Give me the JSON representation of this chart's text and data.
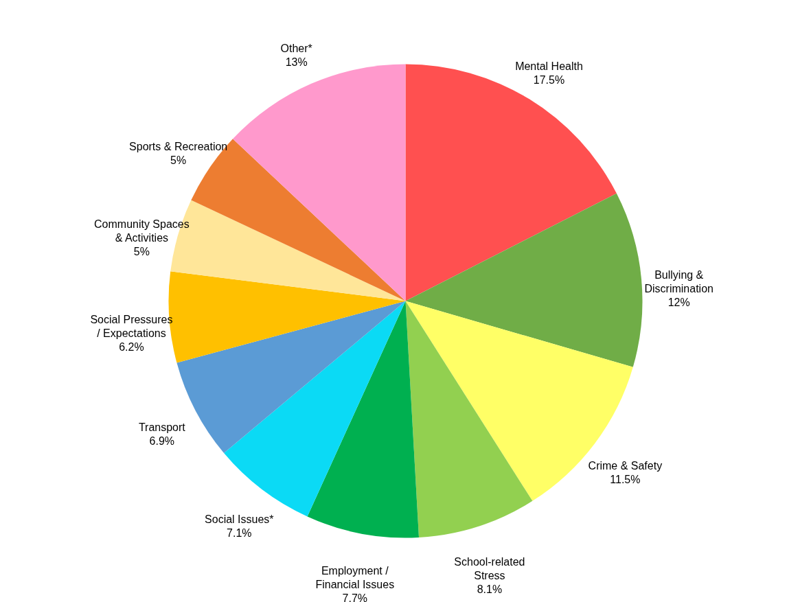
{
  "chart_data": {
    "type": "pie",
    "categories": [
      "Mental Health",
      "Bullying & Discrimination",
      "Crime & Safety",
      "School-related Stress",
      "Employment / Financial Issues",
      "Social Issues*",
      "Transport",
      "Social Pressures / Expectations",
      "Community Spaces & Activities",
      "Sports & Recreation",
      "Other*"
    ],
    "values": [
      17.5,
      12,
      11.5,
      8.1,
      7.7,
      7.1,
      6.9,
      6.2,
      5,
      5,
      13
    ],
    "value_labels": [
      "17.5%",
      "12%",
      "11.5%",
      "8.1%",
      "7.7%",
      "7.1%",
      "6.9%",
      "6.2%",
      "5%",
      "5%",
      "13%"
    ],
    "colors": [
      "#ff5050",
      "#70ad47",
      "#ffff66",
      "#92d050",
      "#00b050",
      "#0bdaf5",
      "#5b9bd5",
      "#ffc000",
      "#ffe699",
      "#ed7d31",
      "#ff99cc"
    ]
  }
}
